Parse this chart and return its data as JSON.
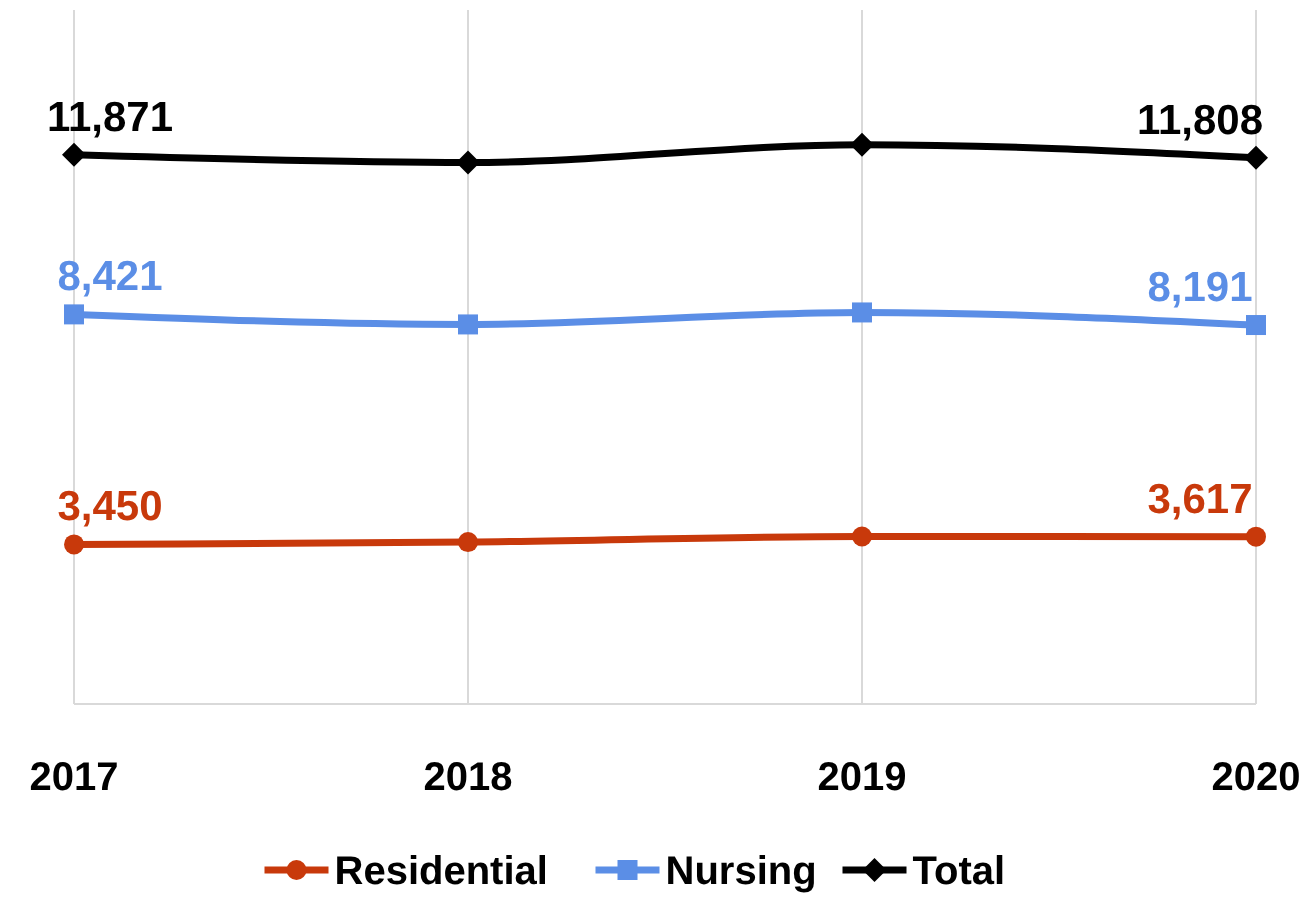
{
  "chart_data": {
    "type": "line",
    "categories": [
      "2017",
      "2018",
      "2019",
      "2020"
    ],
    "ylim": [
      0,
      15000
    ],
    "tick_labels": "x",
    "grid": "x",
    "legend": "bottom",
    "series": [
      {
        "name": "Residential",
        "color": "#c8390b",
        "marker": "circle",
        "values": [
          3450,
          3500,
          3620,
          3617
        ],
        "value_labels": [
          "3,450",
          null,
          null,
          "3,617"
        ]
      },
      {
        "name": "Nursing",
        "color": "#5b8ee6",
        "marker": "square",
        "values": [
          8421,
          8204,
          8463,
          8191
        ],
        "value_labels": [
          "8,421",
          null,
          null,
          "8,191"
        ]
      },
      {
        "name": "Total",
        "color": "#000000",
        "marker": "diamond",
        "values": [
          11871,
          11702,
          12090,
          11808
        ],
        "value_labels": [
          "11,871",
          null,
          null,
          "11,808"
        ]
      }
    ]
  }
}
